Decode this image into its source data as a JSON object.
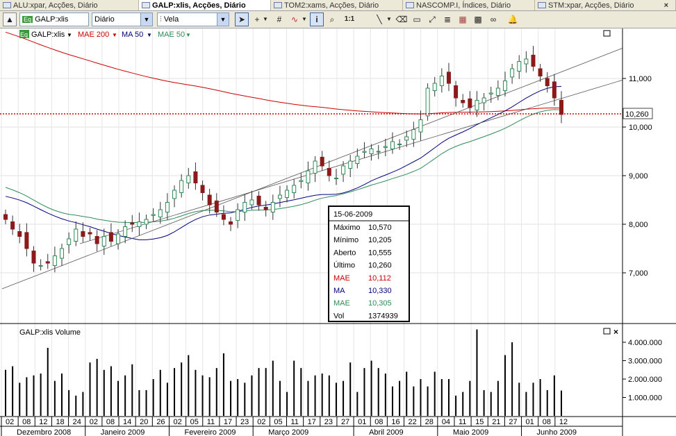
{
  "tabs": [
    {
      "label": "ALU:xpar, Acções, Diário",
      "active": false
    },
    {
      "label": "GALP:xlis, Acções, Diário",
      "active": true
    },
    {
      "label": "TOM2:xams, Acções, Diário",
      "active": false
    },
    {
      "label": "NASCOMP.I, Índices, Diário",
      "active": false
    },
    {
      "label": "STM:xpar, Acções, Diário",
      "active": false
    }
  ],
  "toolbar": {
    "symbol": "GALP:xlis",
    "period": "Diário",
    "chart_style": "Vela",
    "zoom_label": "1:1"
  },
  "legend": {
    "eq": "Eq",
    "symbol": "GALP:xlis",
    "items": [
      {
        "label": "MAE 200",
        "color": "#cc0000"
      },
      {
        "label": "MA 50",
        "color": "#000080"
      },
      {
        "label": "MAE 50",
        "color": "#2e8b57"
      }
    ]
  },
  "price_axis": {
    "ticks": [
      "11,000",
      "10,000",
      "9,000",
      "8,000",
      "7,000"
    ],
    "last_price": "10,260"
  },
  "volume": {
    "title": "GALP:xlis Volume",
    "ticks": [
      "4.000.000",
      "3.000.000",
      "2.000.000",
      "1.000.000"
    ]
  },
  "date_axis": {
    "days": [
      "02",
      "08",
      "12",
      "18",
      "24",
      "02",
      "08",
      "14",
      "20",
      "26",
      "02",
      "05",
      "11",
      "17",
      "23",
      "02",
      "05",
      "11",
      "17",
      "23",
      "27",
      "01",
      "08",
      "16",
      "22",
      "28",
      "04",
      "11",
      "15",
      "21",
      "27",
      "01",
      "08",
      "12"
    ],
    "months": [
      "Dezembro 2008",
      "Janeiro 2009",
      "Fevereiro 2009",
      "Março 2009",
      "Abril 2009",
      "Maio 2009",
      "Junho 2009"
    ]
  },
  "tooltip": {
    "date": "15-06-2009",
    "rows": [
      {
        "label": "Máximo",
        "value": "10,570",
        "color": "#000000"
      },
      {
        "label": "Mínimo",
        "value": "10,205",
        "color": "#000000"
      },
      {
        "label": "Aberto",
        "value": "10,555",
        "color": "#000000"
      },
      {
        "label": "Último",
        "value": "10,260",
        "color": "#000000"
      },
      {
        "label": "MAE",
        "value": "10,112",
        "color": "#cc0000"
      },
      {
        "label": "MA",
        "value": "10,330",
        "color": "#000080"
      },
      {
        "label": "MAE",
        "value": "10,305",
        "color": "#2e8b57"
      },
      {
        "label": "Vol",
        "value": "1374939",
        "color": "#000000"
      }
    ]
  },
  "chart_data": {
    "type": "candlestick",
    "title": "",
    "ylim": [
      6.0,
      12.0
    ],
    "up_color": "#2e8b57",
    "down_color": "#8b1a1a",
    "closes": [
      8.1,
      7.9,
      7.75,
      7.5,
      7.2,
      7.15,
      7.2,
      7.35,
      7.5,
      7.7,
      7.9,
      7.75,
      7.8,
      7.6,
      7.75,
      7.65,
      7.8,
      7.95,
      8.0,
      8.05,
      8.1,
      8.2,
      8.3,
      8.45,
      8.7,
      8.9,
      9.0,
      8.85,
      8.65,
      8.4,
      8.25,
      8.1,
      8.0,
      8.3,
      8.45,
      8.5,
      8.4,
      8.3,
      8.45,
      8.6,
      8.7,
      8.8,
      8.9,
      9.1,
      9.3,
      9.2,
      9.0,
      8.95,
      9.2,
      9.3,
      9.4,
      9.5,
      9.55,
      9.5,
      9.6,
      9.7,
      9.65,
      9.8,
      9.95,
      10.15,
      10.8,
      10.9,
      11.05,
      10.9,
      10.6,
      10.5,
      10.4,
      10.55,
      10.6,
      10.7,
      10.8,
      10.95,
      11.2,
      11.35,
      11.4,
      11.25,
      11.05,
      10.85,
      10.6,
      10.26
    ],
    "volume_values": [
      2500000,
      2700000,
      1800000,
      2100000,
      2200000,
      2300000,
      3700000,
      1900000,
      2300000,
      1400000,
      1100000,
      1300000,
      2900000,
      3100000,
      2500000,
      2700000,
      1900000,
      2200000,
      2800000,
      1400000,
      1400000,
      2000000,
      2500000,
      1800000,
      2600000,
      2900000,
      3300000,
      2500000,
      2200000,
      2100000,
      2600000,
      3400000,
      1900000,
      2000000,
      1800000,
      2200000,
      2600000,
      2600000,
      3000000,
      1900000,
      1300000,
      3000000,
      2600000,
      1900000,
      2200000,
      2300000,
      2200000,
      1800000,
      1900000,
      2900000,
      1300000,
      2600000,
      3000000,
      2600000,
      2300000,
      1600000,
      1900000,
      2400000,
      1600000,
      2000000,
      1600000,
      2400000,
      2000000,
      2000000,
      1100000,
      1300000,
      1900000,
      4700000,
      1400000,
      1300000,
      1900000,
      3300000,
      4000000,
      1800000,
      1300000,
      1800000,
      2000000,
      1400000,
      2200000,
      1374939
    ],
    "indicators": [
      {
        "name": "MAE 200",
        "color": "#cc0000",
        "start": 12.0,
        "end": 10.11
      },
      {
        "name": "MA 50",
        "color": "#000080",
        "start": 8.6,
        "end": 10.33
      },
      {
        "name": "MAE 50",
        "color": "#2e8b57",
        "start": 8.8,
        "end": 10.3
      }
    ]
  }
}
